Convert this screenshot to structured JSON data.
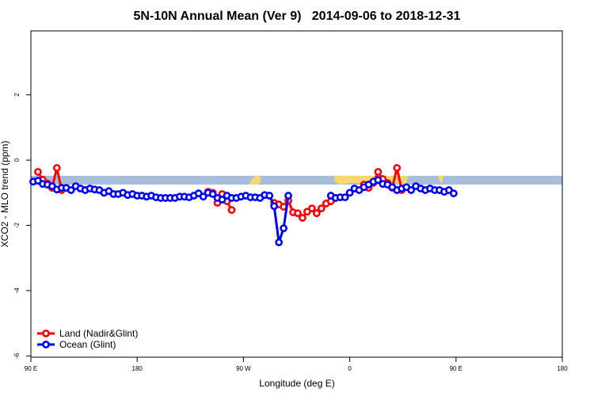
{
  "chart_data": {
    "type": "line",
    "title": "5N-10N Annual Mean (Ver 9)   2014-09-06 to 2018-12-31",
    "x_label": "Longitude (deg E)",
    "y_label": "XCO2 - MLO trend (ppm)",
    "xlim": [
      90,
      540
    ],
    "ylim": [
      -6.04,
      3.96
    ],
    "xticks": [
      {
        "value": 90,
        "label": "90 E"
      },
      180,
      {
        "value": 270,
        "label": "90 W"
      },
      {
        "value": 360,
        "label": "0"
      },
      {
        "value": 450,
        "label": "90 E"
      },
      {
        "value": 540,
        "label": "180"
      }
    ],
    "yticks": [
      2,
      0,
      -2,
      -4,
      -6
    ],
    "legend": "bottom-left",
    "x": [
      92,
      96,
      100,
      104,
      108,
      112,
      116,
      120,
      124,
      128,
      132,
      136,
      140,
      144,
      148,
      152,
      156,
      160,
      164,
      168,
      172,
      176,
      180,
      184,
      188,
      192,
      196,
      200,
      204,
      208,
      212,
      216,
      220,
      224,
      228,
      232,
      236,
      240,
      244,
      248,
      252,
      256,
      260,
      264,
      268,
      272,
      276,
      280,
      284,
      288,
      292,
      296,
      300,
      304,
      308,
      312,
      316,
      320,
      324,
      328,
      332,
      336,
      340,
      344,
      348,
      352,
      356,
      360,
      364,
      368,
      372,
      376,
      380,
      384,
      388,
      392,
      396,
      400,
      404,
      408,
      412,
      416,
      420,
      424,
      428,
      432,
      436,
      440,
      444,
      448
    ],
    "series": [
      {
        "name": "Land (Nadir&Glint)",
        "color": "#ff0000",
        "values": [
          null,
          -0.36,
          -0.6,
          -0.72,
          -0.85,
          -0.24,
          -0.92,
          null,
          null,
          null,
          null,
          null,
          null,
          null,
          null,
          null,
          null,
          null,
          null,
          null,
          null,
          null,
          null,
          null,
          null,
          null,
          null,
          null,
          null,
          null,
          null,
          null,
          null,
          null,
          null,
          null,
          null,
          -0.97,
          -1.0,
          -1.31,
          -1.04,
          -1.26,
          -1.53,
          null,
          null,
          null,
          null,
          null,
          null,
          null,
          null,
          -1.31,
          -1.36,
          -1.43,
          -1.24,
          -1.6,
          -1.63,
          -1.77,
          -1.58,
          -1.48,
          -1.63,
          -1.48,
          -1.33,
          -1.26,
          null,
          null,
          null,
          null,
          null,
          null,
          -0.75,
          -0.85,
          -0.7,
          -0.36,
          -0.58,
          -0.7,
          -0.85,
          -0.24,
          -0.92,
          null,
          null,
          null,
          null,
          null,
          null,
          null,
          null,
          null,
          null,
          null
        ]
      },
      {
        "name": "Ocean (Glint)",
        "color": "#0000ff",
        "values": [
          -0.66,
          -0.63,
          -0.73,
          -0.75,
          -0.8,
          -0.9,
          -0.85,
          -0.85,
          -0.92,
          -0.8,
          -0.87,
          -0.92,
          -0.87,
          -0.9,
          -0.92,
          -1.0,
          -0.95,
          -1.04,
          -1.04,
          -1.0,
          -1.07,
          -1.04,
          -1.09,
          -1.09,
          -1.12,
          -1.09,
          -1.14,
          -1.16,
          -1.16,
          -1.16,
          -1.16,
          -1.12,
          -1.12,
          -1.14,
          -1.09,
          -1.02,
          -1.12,
          -1.0,
          -1.04,
          -1.16,
          -1.21,
          -1.09,
          -1.16,
          -1.16,
          -1.12,
          -1.09,
          -1.14,
          -1.14,
          -1.16,
          -1.07,
          -1.09,
          -1.41,
          -2.52,
          -2.09,
          -1.09,
          null,
          null,
          null,
          null,
          null,
          null,
          null,
          null,
          -1.09,
          -1.16,
          -1.14,
          -1.14,
          -1.0,
          -0.87,
          -0.92,
          -0.83,
          -0.75,
          -0.66,
          -0.61,
          -0.73,
          -0.75,
          -0.83,
          -0.92,
          -0.87,
          -0.83,
          -0.92,
          -0.8,
          -0.87,
          -0.92,
          -0.87,
          -0.92,
          -0.92,
          -0.97,
          -0.92,
          -1.02
        ]
      }
    ]
  }
}
